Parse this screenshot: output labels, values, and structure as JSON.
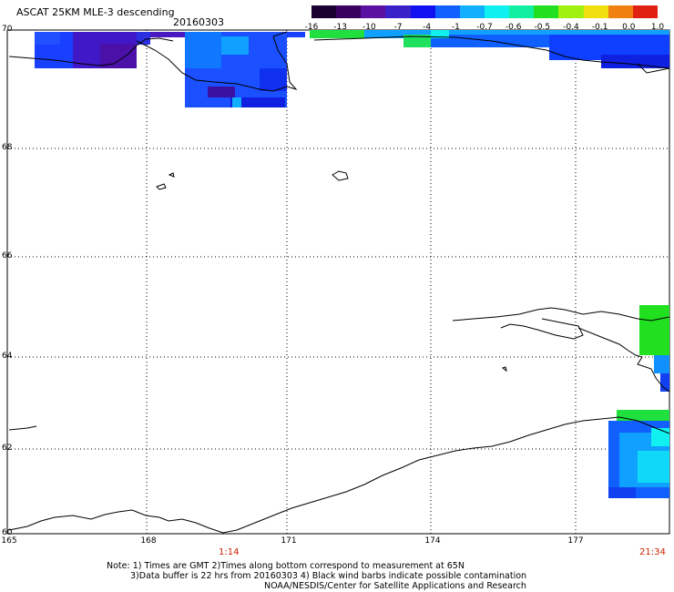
{
  "title": "ASCAT 25KM MLE-3 descending",
  "date": "20160303",
  "colorbar": {
    "labels": [
      "-16",
      "-13",
      "-10",
      "-7",
      "-4",
      "-1",
      "-0.7",
      "-0.6",
      "-0.5",
      "-0.4",
      "-0.1",
      "0.0",
      "1.0"
    ],
    "colors": [
      "#1a0030",
      "#3a0060",
      "#5a10a0",
      "#3a20c8",
      "#1010f0",
      "#1060ff",
      "#10b0ff",
      "#10f0f0",
      "#10f0a0",
      "#20e020",
      "#a0f010",
      "#f0e010",
      "#f08010",
      "#e02010"
    ]
  },
  "map": {
    "lat_labels": [
      "70",
      "68",
      "66",
      "64",
      "62",
      "60"
    ],
    "lon_labels": [
      "165",
      "168",
      "171",
      "174",
      "177"
    ],
    "lon_range": [
      165,
      180
    ],
    "lat_range": [
      60,
      70
    ]
  },
  "times": {
    "left": "1:14",
    "right": "21:34"
  },
  "notes": {
    "line1": "Note: 1) Times are GMT 2)Times along bottom correspond to measurement at 65N",
    "line2": "3)Data buffer is 22 hrs from 20160303 4) Black wind barbs indicate possible contamination",
    "line3": "NOAA/NESDIS/Center for Satellite Applications and Research"
  }
}
